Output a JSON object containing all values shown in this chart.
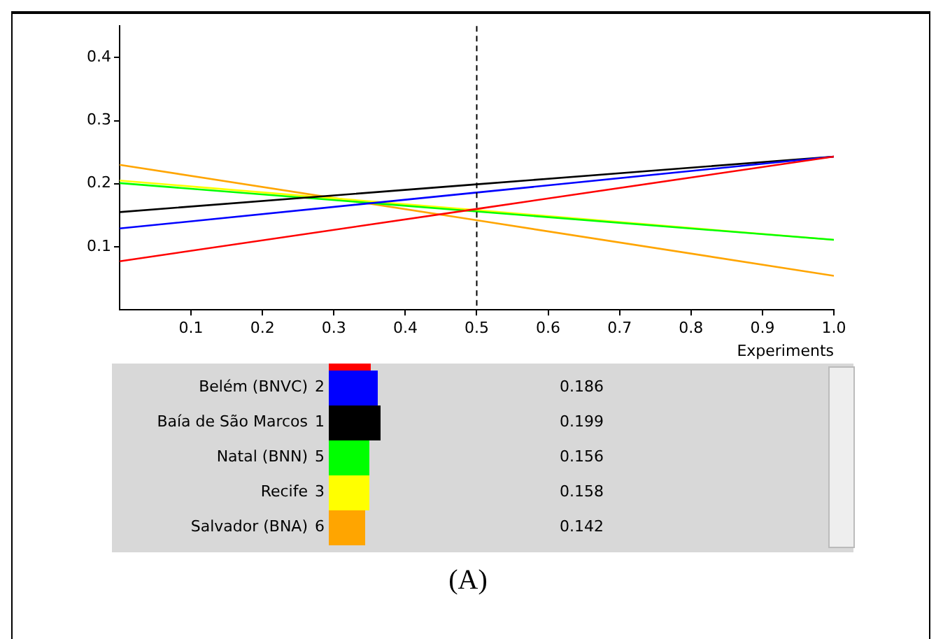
{
  "chart_data": {
    "type": "line",
    "xlabel": "Experiments",
    "x": [
      0,
      0.5,
      1
    ],
    "xlim": [
      0,
      1
    ],
    "xticks": [
      0.1,
      0.2,
      0.3,
      0.4,
      0.5,
      0.6,
      0.7,
      0.8,
      0.9,
      {
        "value": 1,
        "label": "1.0"
      }
    ],
    "ylim": [
      0,
      0.45
    ],
    "yticks": [
      0.1,
      0.2,
      0.3,
      0.4
    ],
    "grid": false,
    "marker": "none",
    "line_style": "solid",
    "legend": "bottom",
    "ref_lines": [
      {
        "axis": "x",
        "value": 0.5,
        "line_style": "dashed",
        "color": "#000000"
      }
    ],
    "series": [
      {
        "color": "#ff0000",
        "values": [
          0.077,
          0.16,
          0.243
        ]
      },
      {
        "name": "Belém (BNVC)",
        "color": "#0000ff",
        "values": [
          0.129,
          0.186,
          0.243
        ]
      },
      {
        "name": "Baía de São Marcos",
        "color": "#000000",
        "values": [
          0.155,
          0.199,
          0.243
        ]
      },
      {
        "name": "Natal (BNN)",
        "color": "#00ff00",
        "values": [
          0.201,
          0.156,
          0.111
        ]
      },
      {
        "name": "Recife",
        "color": "#ffff00",
        "values": [
          0.205,
          0.158,
          0.111
        ]
      },
      {
        "name": "Salvador (BNA)",
        "color": "#ffa500",
        "values": [
          0.23,
          0.142,
          0.054
        ]
      }
    ],
    "annotations": [
      "2",
      "0.186",
      "1",
      "0.199",
      "5",
      "0.156",
      "3",
      "0.158",
      "6",
      "0.142",
      "(A)"
    ]
  }
}
